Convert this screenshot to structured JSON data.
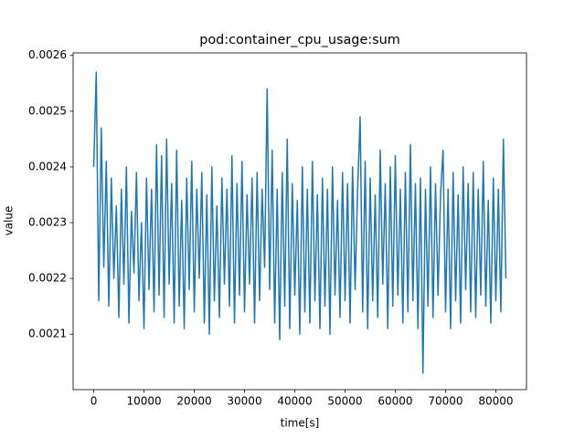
{
  "chart_data": {
    "type": "line",
    "title": "pod:container_cpu_usage:sum",
    "xlabel": "time[s]",
    "ylabel": "value",
    "xlim": [
      -4100,
      86100
    ],
    "ylim": [
      0.0020005,
      0.0026045
    ],
    "xticks": [
      0,
      10000,
      20000,
      30000,
      40000,
      50000,
      60000,
      70000,
      80000
    ],
    "yticks": [
      0.0021,
      0.0022,
      0.0023,
      0.0024,
      0.0025,
      0.0026
    ],
    "grid": false,
    "series": [
      {
        "color": "#1f77b4",
        "x": [
          0,
          500,
          1000,
          1500,
          2000,
          2500,
          3000,
          3500,
          4000,
          4500,
          5000,
          5500,
          6000,
          6500,
          7000,
          7500,
          8000,
          8500,
          9000,
          9500,
          10000,
          10500,
          11000,
          11500,
          12000,
          12500,
          13000,
          13500,
          14000,
          14500,
          15000,
          15500,
          16000,
          16500,
          17000,
          17500,
          18000,
          18500,
          19000,
          19500,
          20000,
          20500,
          21000,
          21500,
          22000,
          22500,
          23000,
          23500,
          24000,
          24500,
          25000,
          25500,
          26000,
          26500,
          27000,
          27500,
          28000,
          28500,
          29000,
          29500,
          30000,
          30500,
          31000,
          31500,
          32000,
          32500,
          33000,
          33500,
          34000,
          34500,
          35000,
          35500,
          36000,
          36500,
          37000,
          37500,
          38000,
          38500,
          39000,
          39500,
          40000,
          40500,
          41000,
          41500,
          42000,
          42500,
          43000,
          43500,
          44000,
          44500,
          45000,
          45500,
          46000,
          46500,
          47000,
          47500,
          48000,
          48500,
          49000,
          49500,
          50000,
          50500,
          51000,
          51500,
          52000,
          52500,
          53000,
          53500,
          54000,
          54500,
          55000,
          55500,
          56000,
          56500,
          57000,
          57500,
          58000,
          58500,
          59000,
          59500,
          60000,
          60500,
          61000,
          61500,
          62000,
          62500,
          63000,
          63500,
          64000,
          64500,
          65000,
          65500,
          66000,
          66500,
          67000,
          67500,
          68000,
          68500,
          69000,
          69500,
          70000,
          70500,
          71000,
          71500,
          72000,
          72500,
          73000,
          73500,
          74000,
          74500,
          75000,
          75500,
          76000,
          76500,
          77000,
          77500,
          78000,
          78500,
          79000,
          79500,
          80000,
          80500,
          81000,
          81500,
          82000
        ],
        "values": [
          0.0024,
          0.00257,
          0.00216,
          0.00247,
          0.00222,
          0.00241,
          0.00215,
          0.00238,
          0.0022,
          0.00233,
          0.00213,
          0.00236,
          0.00219,
          0.0024,
          0.00212,
          0.00232,
          0.00221,
          0.00239,
          0.00216,
          0.0023,
          0.00211,
          0.00238,
          0.00218,
          0.00236,
          0.00214,
          0.00244,
          0.00217,
          0.00242,
          0.00213,
          0.00245,
          0.00219,
          0.00237,
          0.00212,
          0.00243,
          0.00215,
          0.00234,
          0.00211,
          0.00238,
          0.00218,
          0.00241,
          0.00214,
          0.00236,
          0.0022,
          0.00239,
          0.00212,
          0.00235,
          0.0021,
          0.0024,
          0.00216,
          0.00233,
          0.00213,
          0.00238,
          0.00219,
          0.00236,
          0.00215,
          0.00242,
          0.00212,
          0.00237,
          0.00217,
          0.00241,
          0.00214,
          0.00235,
          0.00219,
          0.00238,
          0.00212,
          0.00239,
          0.00216,
          0.00236,
          0.00222,
          0.00254,
          0.00218,
          0.00243,
          0.00212,
          0.00236,
          0.00209,
          0.00239,
          0.00215,
          0.00245,
          0.00211,
          0.00237,
          0.00217,
          0.00234,
          0.0021,
          0.0024,
          0.00214,
          0.00236,
          0.00212,
          0.00241,
          0.00216,
          0.00235,
          0.00211,
          0.00238,
          0.00215,
          0.00236,
          0.0021,
          0.0024,
          0.00217,
          0.00234,
          0.00213,
          0.00239,
          0.00216,
          0.00237,
          0.00212,
          0.0024,
          0.00218,
          0.00236,
          0.00249,
          0.00214,
          0.00241,
          0.00211,
          0.00238,
          0.00216,
          0.00235,
          0.00213,
          0.00243,
          0.00219,
          0.00237,
          0.00211,
          0.0024,
          0.00215,
          0.00242,
          0.00217,
          0.00236,
          0.00212,
          0.00239,
          0.00214,
          0.00244,
          0.00216,
          0.00237,
          0.00211,
          0.00238,
          0.00203,
          0.00236,
          0.00215,
          0.0024,
          0.00213,
          0.00237,
          0.00217,
          0.00235,
          0.00243,
          0.00214,
          0.00236,
          0.00211,
          0.00239,
          0.00216,
          0.00235,
          0.00212,
          0.0024,
          0.00218,
          0.00237,
          0.00214,
          0.00239,
          0.00213,
          0.00236,
          0.00217,
          0.00241,
          0.00215,
          0.00234,
          0.00212,
          0.00238,
          0.00216,
          0.00236,
          0.00214,
          0.00245,
          0.0022
        ]
      }
    ]
  }
}
